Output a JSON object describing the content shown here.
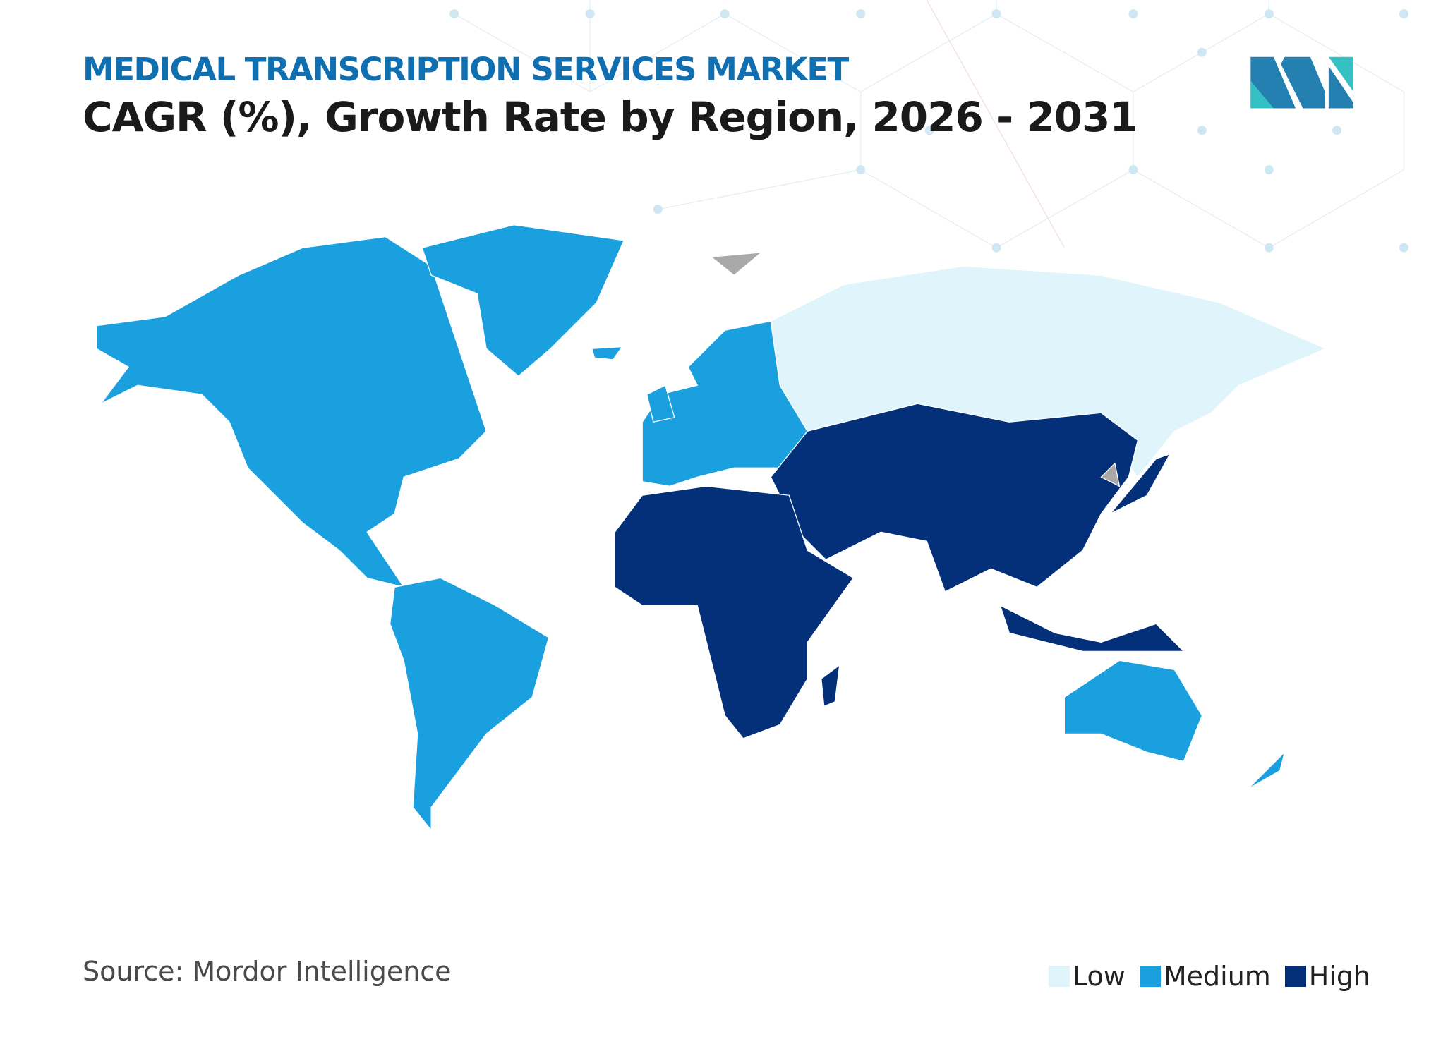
{
  "header": {
    "subtitle": "MEDICAL TRANSCRIPTION SERVICES MARKET",
    "title": "CAGR (%), Growth Rate by Region, 2026 - 2031"
  },
  "source": "Source: Mordor Intelligence",
  "chart_data": {
    "type": "choropleth-map",
    "title": "CAGR (%), Growth Rate by Region, 2026 - 2031",
    "legend": [
      {
        "label": "Low",
        "color": "#e0f5fb"
      },
      {
        "label": "Medium",
        "color": "#1a9fdf"
      },
      {
        "label": "High",
        "color": "#04307a"
      }
    ],
    "legend_placement": "bottom-right",
    "regions": [
      {
        "region": "North America",
        "level": "Medium"
      },
      {
        "region": "South America",
        "level": "Medium"
      },
      {
        "region": "Europe",
        "level": "Medium"
      },
      {
        "region": "Russia",
        "level": "Low"
      },
      {
        "region": "Asia",
        "level": "High"
      },
      {
        "region": "Middle East and Africa",
        "level": "High"
      },
      {
        "region": "Australia and New Zealand",
        "level": "Medium"
      }
    ],
    "no_data_color": "#a9a9a9"
  },
  "logo": {
    "colors": [
      "#2380b0",
      "#35c1c3"
    ]
  }
}
